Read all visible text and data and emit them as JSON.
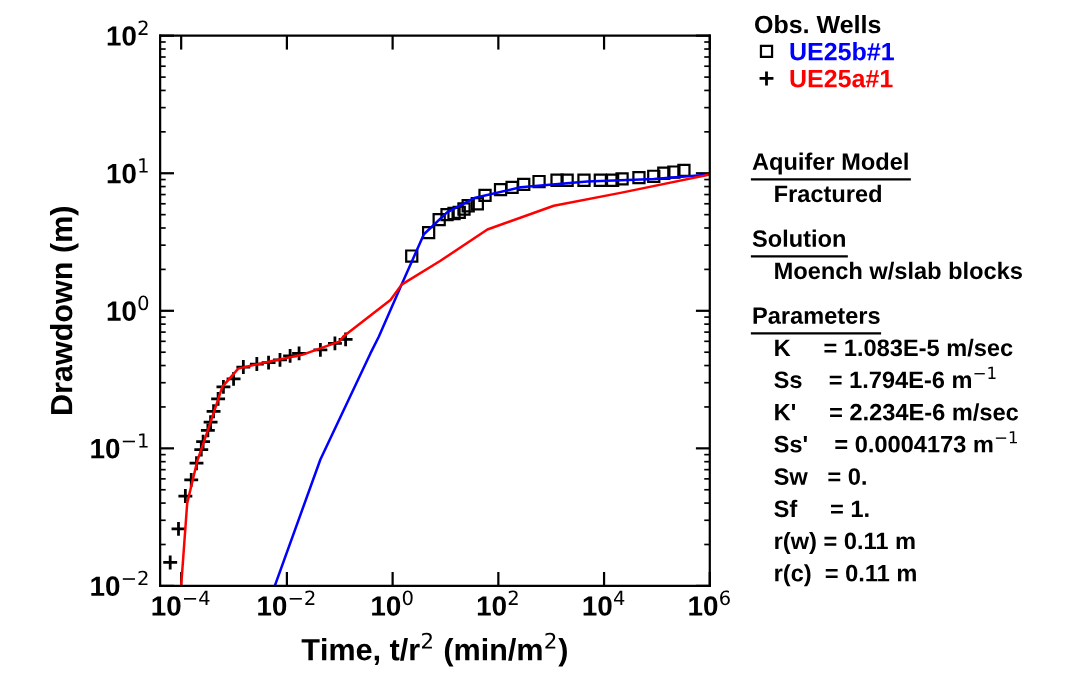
{
  "chart_data": {
    "type": "scatter",
    "xlabel": "Time, t/r$^{2}$ (min/m$^{2}$)",
    "ylabel": "Drawdown (m)",
    "log": "xy",
    "grid": false,
    "legend": "right",
    "legend_title": "Obs. Wells",
    "xlim": [
      4e-05,
      1000000
    ],
    "ylim": [
      0.01,
      100
    ],
    "xticks": [
      {
        "value": 0.0001,
        "label": "10$^{−4}$"
      },
      {
        "value": 0.01,
        "label": "10$^{−2}$"
      },
      {
        "value": 1,
        "label": "10$^{0}$"
      },
      {
        "value": 100,
        "label": "10$^{2}$"
      },
      {
        "value": 10000,
        "label": "10$^{4}$"
      },
      {
        "value": 1000000,
        "label": "10$^{6}$"
      }
    ],
    "yticks": [
      {
        "value": 0.01,
        "label": "10$^{−2}$"
      },
      {
        "value": 0.1,
        "label": "10$^{−1}$"
      },
      {
        "value": 1,
        "label": "10$^{0}$"
      },
      {
        "value": 10,
        "label": "10$^{1}$"
      },
      {
        "value": 100,
        "label": "10$^{2}$"
      }
    ],
    "series": [
      {
        "name": "UE25b#1",
        "marker": "square",
        "color": "#000000",
        "x": [
          2.3,
          4.8,
          7.6,
          10.7,
          14.5,
          18.2,
          22.4,
          26.9,
          40,
          56,
          110,
          182,
          302,
          589,
          1290,
          2000,
          4170,
          8500,
          14500,
          21900,
          45700,
          87100,
          135000,
          209000,
          324000
        ],
        "values": [
          2.5,
          3.7,
          4.6,
          5.0,
          5.1,
          5.2,
          5.5,
          5.8,
          6.0,
          6.9,
          7.6,
          7.9,
          8.3,
          8.7,
          8.9,
          8.9,
          8.9,
          8.9,
          8.9,
          9.1,
          9.3,
          9.5,
          10.0,
          10.2,
          10.5
        ]
      },
      {
        "name": "UE25a#1",
        "marker": "cross",
        "color": "#000000",
        "x": [
          6.2e-05,
          8.9e-05,
          0.00012,
          0.000155,
          0.000195,
          0.00024,
          0.00026,
          0.00032,
          0.00036,
          0.00041,
          0.0005,
          0.00063,
          0.00098,
          0.0015,
          0.0027,
          0.0045,
          0.0074,
          0.0115,
          0.017,
          0.043,
          0.081,
          0.129
        ],
        "values": [
          0.0148,
          0.026,
          0.045,
          0.059,
          0.078,
          0.098,
          0.112,
          0.135,
          0.155,
          0.186,
          0.229,
          0.28,
          0.32,
          0.39,
          0.41,
          0.42,
          0.44,
          0.47,
          0.49,
          0.52,
          0.58,
          0.62
        ]
      },
      {
        "type": "line",
        "marker": "none",
        "color": "#0000ff",
        "x": [
          0.0059,
          0.043,
          0.38,
          0.55,
          1.48,
          3.9,
          10.7,
          35,
          263,
          4790,
          87100,
          1000000
        ],
        "values": [
          0.01,
          0.083,
          0.49,
          0.65,
          1.55,
          3.6,
          5.2,
          6.6,
          7.9,
          8.7,
          9.1,
          9.8
        ]
      },
      {
        "type": "line",
        "marker": "none",
        "color": "#ff0000",
        "x": [
          0.0001,
          0.00013,
          0.0002,
          0.00035,
          0.0006,
          0.0012,
          0.005,
          0.02,
          0.1,
          0.117,
          0.91,
          1.48,
          7.9,
          62,
          1120,
          20400,
          1000000
        ],
        "values": [
          0.01,
          0.04,
          0.08,
          0.15,
          0.28,
          0.38,
          0.43,
          0.48,
          0.6,
          0.65,
          1.2,
          1.55,
          2.3,
          3.9,
          5.8,
          7.2,
          9.8
        ]
      }
    ],
    "annotations": [
      "Aquifer Model",
      " Fractured",
      "Solution",
      " Moench w/slab blocks",
      "Parameters",
      " K     = 1.083E-5 m/sec",
      " Ss    = 1.794E-6 m$^{−1}$",
      " K'     = 2.234E-6 m/sec",
      " Ss'    = 0.0004173 m$^{−1}$",
      " Sw   = 0.",
      " Sf     = 1.",
      " r(w) = 0.11 m",
      " r(c)  = 0.11 m"
    ]
  }
}
